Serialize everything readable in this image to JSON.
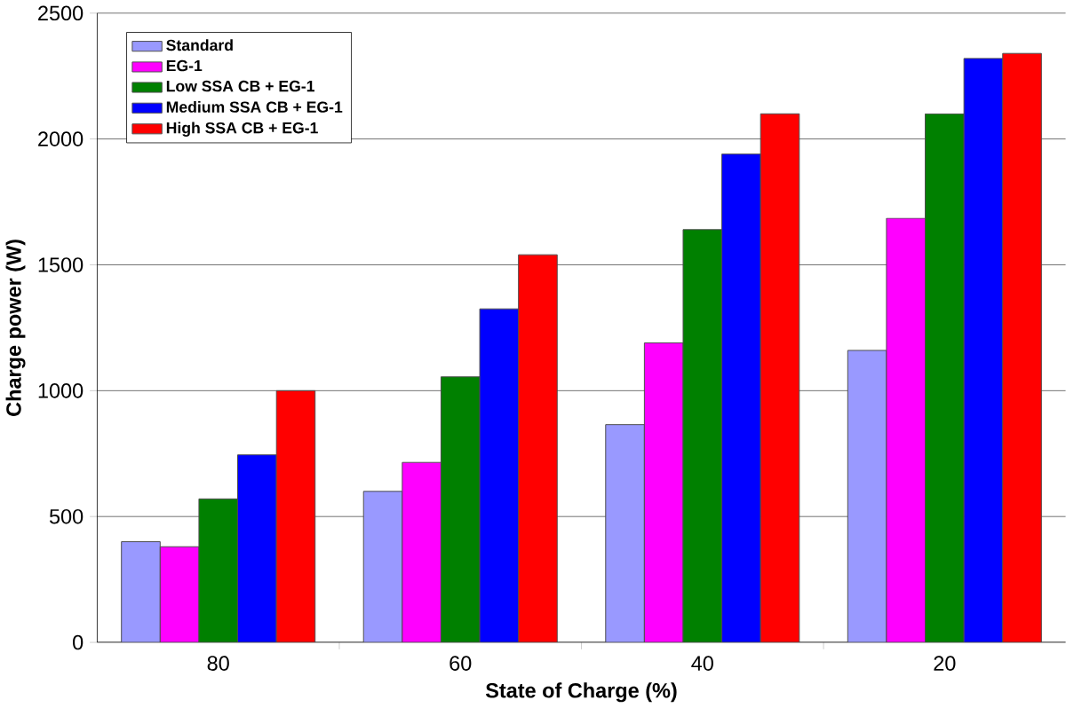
{
  "chart_data": {
    "type": "bar",
    "xlabel": "State of Charge (%)",
    "ylabel": "Charge power (W)",
    "categories": [
      "80",
      "60",
      "40",
      "20"
    ],
    "series": [
      {
        "name": "Standard",
        "color": "#9999ff",
        "values": [
          400,
          600,
          865,
          1160
        ]
      },
      {
        "name": "EG-1",
        "color": "#ff00ff",
        "values": [
          380,
          715,
          1190,
          1685
        ]
      },
      {
        "name": "Low SSA CB + EG-1",
        "color": "#008000",
        "values": [
          570,
          1055,
          1640,
          2100
        ]
      },
      {
        "name": "Medium SSA CB + EG-1",
        "color": "#0000ff",
        "values": [
          745,
          1325,
          1940,
          2320
        ]
      },
      {
        "name": "High SSA CB + EG-1",
        "color": "#ff0000",
        "values": [
          1000,
          1540,
          2100,
          2340
        ]
      }
    ],
    "ylim": [
      0,
      2500
    ],
    "yticks": [
      0,
      500,
      1000,
      1500,
      2000,
      2500
    ],
    "grid": "y",
    "legend": "top left"
  }
}
